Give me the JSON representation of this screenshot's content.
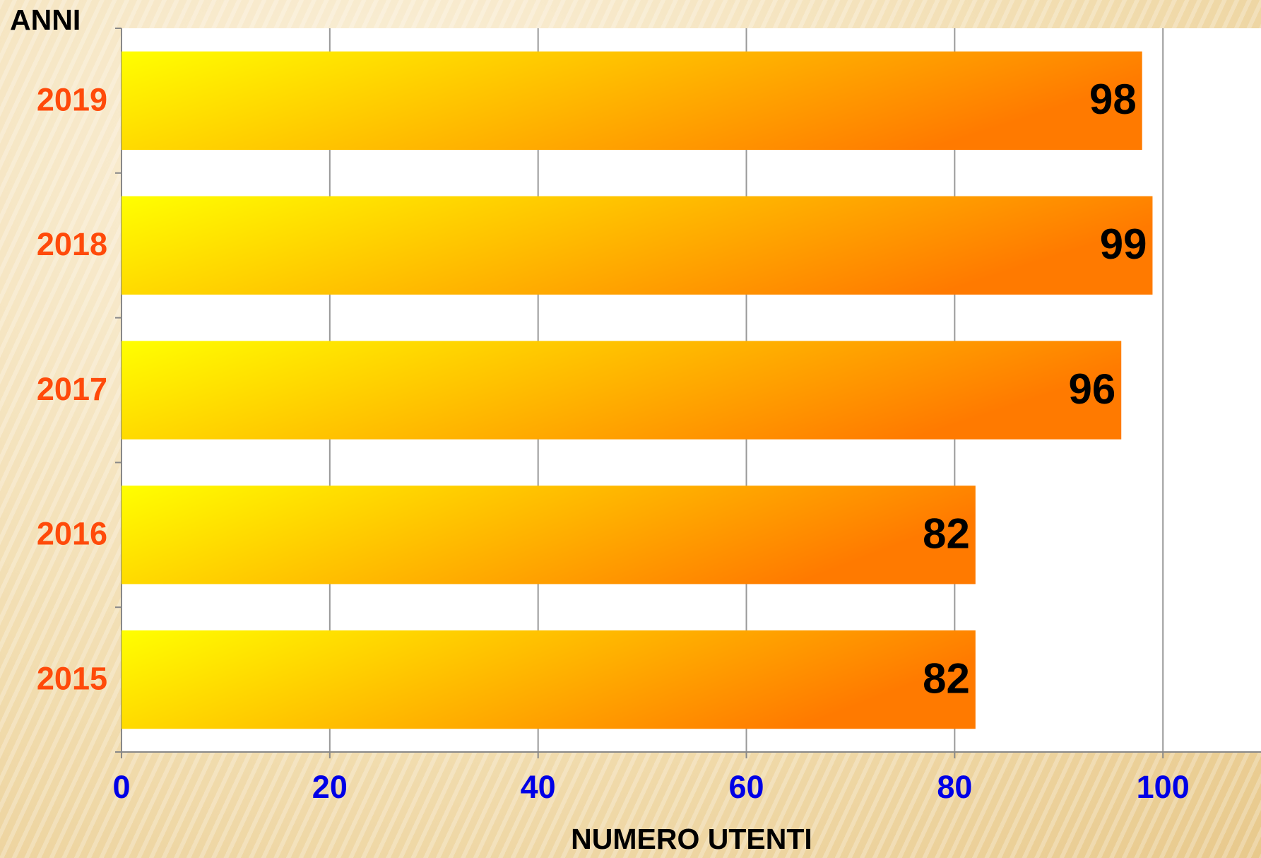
{
  "chart_data": {
    "type": "bar",
    "orientation": "horizontal",
    "y_axis_label": "ANNI",
    "x_axis_label": "NUMERO  UTENTI",
    "categories": [
      "2019",
      "2018",
      "2017",
      "2016",
      "2015"
    ],
    "values": [
      98,
      99,
      96,
      82,
      82
    ],
    "gradient": [
      "#ffff00",
      "#ff7a00"
    ],
    "xlim": [
      0,
      110
    ],
    "xticks": [
      0,
      20,
      40,
      60,
      80,
      100
    ],
    "grid": true
  }
}
